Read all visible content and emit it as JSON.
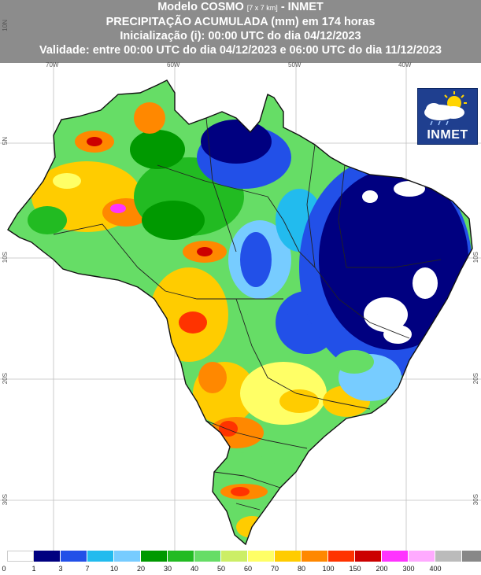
{
  "header": {
    "line1_prefix": "Modelo COSMO ",
    "line1_small": "[7 x 7 km]",
    "line1_suffix": " - INMET",
    "line2": "PRECIPITAÇÃO ACUMULADA (mm) em 174 horas",
    "line3": "Inicialização (i): 00:00 UTC do dia 04/12/2023",
    "line4": "Validade: entre 00:00 UTC do dia 04/12/2023 e 06:00 UTC do dia 11/12/2023"
  },
  "axes": {
    "lon_labels": [
      "70W",
      "60W",
      "50W",
      "40W"
    ],
    "lat_labels": [
      "10N",
      "5N",
      "10S",
      "20S",
      "30S"
    ]
  },
  "logo": {
    "text": "INMET",
    "icon": "sun-cloud-rain-icon"
  },
  "legend": {
    "labels": [
      "0",
      "1",
      "3",
      "7",
      "10",
      "20",
      "30",
      "40",
      "50",
      "60",
      "70",
      "80",
      "100",
      "150",
      "200",
      "300",
      "400"
    ],
    "colors": [
      "#ffffff",
      "#000080",
      "#2250e8",
      "#22bbee",
      "#77ccff",
      "#009900",
      "#22bb22",
      "#66dd66",
      "#ccee66",
      "#ffff66",
      "#ffcc00",
      "#ff8800",
      "#ff3300",
      "#cc0000",
      "#ff33ff",
      "#ffaaff",
      "#bbbbbb",
      "#888888"
    ]
  },
  "colors": {
    "header_bg": "#8c8c8c",
    "ocean": "#ffffff"
  }
}
